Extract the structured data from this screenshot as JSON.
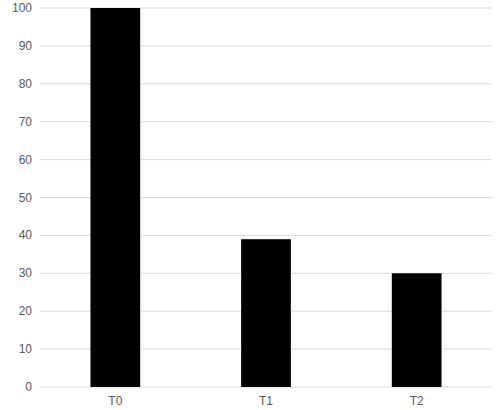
{
  "chart_data": {
    "type": "bar",
    "categories": [
      "T0",
      "T1",
      "T2"
    ],
    "values": [
      100,
      39,
      30
    ],
    "color": "#000000",
    "ylim": [
      0,
      100
    ],
    "yticks": [
      0,
      10,
      20,
      30,
      40,
      50,
      60,
      70,
      80,
      90,
      100
    ],
    "grid": true
  }
}
